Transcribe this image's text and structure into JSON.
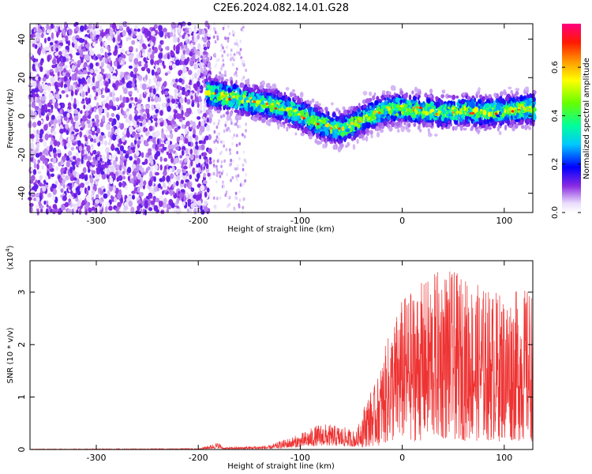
{
  "title": "C2E6.2024.082.14.01.G28",
  "chart_data": [
    {
      "type": "heatmap",
      "xlabel": "Height of straight line (km)",
      "ylabel": "Frequency (Hz)",
      "xlim": [
        -365,
        128
      ],
      "ylim": [
        -50,
        48
      ],
      "xticks": [
        -300,
        -200,
        -100,
        0,
        100
      ],
      "yticks": [
        -40,
        -20,
        0,
        20,
        40
      ],
      "xtick_labels": [
        "-300",
        "-200",
        "-100",
        "0",
        "100"
      ],
      "ytick_labels": [
        "-40",
        "-20",
        "0",
        "20",
        "40"
      ],
      "colorbar": {
        "label": "Normalized spectral amplitude",
        "range": [
          0,
          0.78
        ],
        "ticks": [
          0,
          0.2,
          0.4,
          0.6
        ],
        "tick_labels": [
          "0.0",
          "0.2",
          "0.4",
          "0.6"
        ]
      },
      "ridge": {
        "x": [
          -190,
          -150,
          -120,
          -100,
          -80,
          -60,
          -40,
          -20,
          0,
          20,
          40,
          60,
          80,
          100,
          128
        ],
        "y": [
          12,
          8,
          5,
          1,
          -4,
          -7,
          -2,
          3,
          4,
          3,
          2,
          3,
          2,
          3,
          4
        ]
      }
    },
    {
      "type": "line",
      "xlabel": "Height of straight line (km)",
      "ylabel": "SNR (10 * v/v)",
      "y_multiplier": "(x10",
      "y_multiplier_exp": "4",
      "y_multiplier_close": ")",
      "xlim": [
        -365,
        128
      ],
      "ylim": [
        0,
        3.6
      ],
      "xticks": [
        -300,
        -200,
        -100,
        0,
        100
      ],
      "yticks": [
        0,
        1,
        2,
        3
      ],
      "xtick_labels": [
        "-300",
        "-200",
        "-100",
        "0",
        "100"
      ],
      "ytick_labels": [
        "0",
        "1",
        "2",
        "3"
      ],
      "color": "#ee3333",
      "envelope": {
        "x": [
          -365,
          -200,
          -180,
          -175,
          -130,
          -120,
          -100,
          -80,
          -60,
          -45,
          -35,
          -25,
          -15,
          0,
          20,
          40,
          60,
          80,
          100,
          128
        ],
        "peak": [
          0.01,
          0.02,
          0.14,
          0.04,
          0.08,
          0.16,
          0.3,
          0.5,
          0.45,
          0.35,
          1.0,
          1.3,
          2.1,
          2.9,
          3.2,
          3.5,
          3.3,
          3.1,
          3.0,
          3.1
        ]
      }
    }
  ]
}
